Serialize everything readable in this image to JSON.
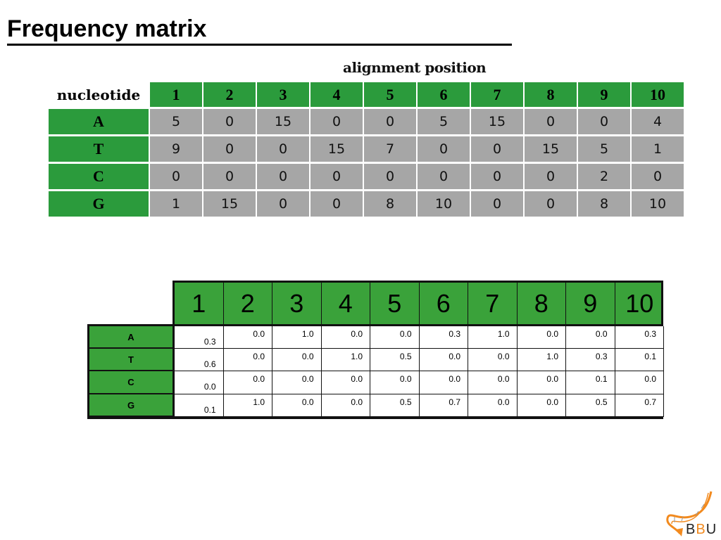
{
  "title": "Frequency matrix",
  "count_table": {
    "axis_label": "alignment position",
    "corner_label": "nucleotide",
    "positions": [
      "1",
      "2",
      "3",
      "4",
      "5",
      "6",
      "7",
      "8",
      "9",
      "10"
    ],
    "rows": [
      {
        "nucleotide": "A",
        "values": [
          "5",
          "0",
          "15",
          "0",
          "0",
          "5",
          "15",
          "0",
          "0",
          "4"
        ]
      },
      {
        "nucleotide": "T",
        "values": [
          "9",
          "0",
          "0",
          "15",
          "7",
          "0",
          "0",
          "15",
          "5",
          "1"
        ]
      },
      {
        "nucleotide": "C",
        "values": [
          "0",
          "0",
          "0",
          "0",
          "0",
          "0",
          "0",
          "0",
          "2",
          "0"
        ]
      },
      {
        "nucleotide": "G",
        "values": [
          "1",
          "15",
          "0",
          "0",
          "8",
          "10",
          "0",
          "0",
          "8",
          "10"
        ]
      }
    ]
  },
  "freq_table": {
    "positions": [
      "1",
      "2",
      "3",
      "4",
      "5",
      "6",
      "7",
      "8",
      "9",
      "10"
    ],
    "rows": [
      {
        "nucleotide": "A",
        "values": [
          "0.3",
          "0.0",
          "1.0",
          "0.0",
          "0.0",
          "0.3",
          "1.0",
          "0.0",
          "0.0",
          "0.3"
        ]
      },
      {
        "nucleotide": "T",
        "values": [
          "0.6",
          "0.0",
          "0.0",
          "1.0",
          "0.5",
          "0.0",
          "0.0",
          "1.0",
          "0.3",
          "0.1"
        ]
      },
      {
        "nucleotide": "C",
        "values": [
          "0.0",
          "0.0",
          "0.0",
          "0.0",
          "0.0",
          "0.0",
          "0.0",
          "0.0",
          "0.1",
          "0.0"
        ]
      },
      {
        "nucleotide": "G",
        "values": [
          "0.1",
          "1.0",
          "0.0",
          "0.0",
          "0.5",
          "0.7",
          "0.0",
          "0.0",
          "0.5",
          "0.7"
        ]
      }
    ]
  },
  "logo": {
    "text_b1": "B",
    "text_b2": "B",
    "text_u": "U",
    "icon": "dna-helix-icon"
  },
  "colors": {
    "header_green": "#2b9b3c",
    "freq_green": "#3aa23a",
    "cell_gray": "#a6a6a6",
    "logo_orange": "#f28a1e"
  }
}
